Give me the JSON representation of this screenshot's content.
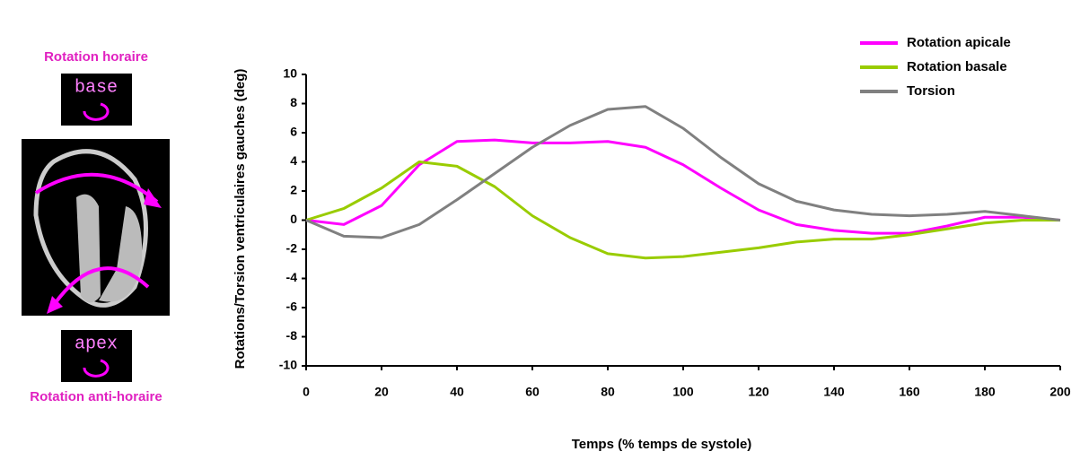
{
  "chart_data": {
    "type": "line",
    "y_label": "Rotations/Torsion ventriculaires gauches  (deg)",
    "x_label": "Temps (% temps de systole)",
    "annotations": [
      "Rotation horaire",
      "base",
      "apex",
      "Rotation anti-horaire"
    ],
    "x": [
      0,
      10,
      20,
      30,
      40,
      50,
      60,
      70,
      80,
      90,
      100,
      110,
      120,
      130,
      140,
      150,
      160,
      170,
      180,
      190,
      200
    ],
    "series": [
      {
        "name": "Rotation apicale",
        "color": "#ff00ff",
        "values": [
          0,
          -0.3,
          1.0,
          3.8,
          5.4,
          5.5,
          5.3,
          5.3,
          5.4,
          5.0,
          3.8,
          2.2,
          0.7,
          -0.3,
          -0.7,
          -0.9,
          -0.9,
          -0.4,
          0.2,
          0.2,
          0
        ]
      },
      {
        "name": "Rotation basale",
        "color": "#99cc00",
        "values": [
          0,
          0.8,
          2.2,
          4.0,
          3.7,
          2.3,
          0.3,
          -1.2,
          -2.3,
          -2.6,
          -2.5,
          -2.2,
          -1.9,
          -1.5,
          -1.3,
          -1.3,
          -1.0,
          -0.6,
          -0.2,
          0,
          0
        ]
      },
      {
        "name": "Torsion",
        "color": "#808080",
        "values": [
          0,
          -1.1,
          -1.2,
          -0.3,
          1.4,
          3.2,
          5.0,
          6.5,
          7.6,
          7.8,
          6.3,
          4.3,
          2.5,
          1.3,
          0.7,
          0.4,
          0.3,
          0.4,
          0.6,
          0.3,
          0
        ]
      }
    ],
    "xlim": [
      0,
      200
    ],
    "xticks": [
      0,
      20,
      40,
      60,
      80,
      100,
      120,
      140,
      160,
      180,
      200
    ],
    "ylim": [
      -10,
      10
    ],
    "yticks": [
      -10,
      -8,
      -6,
      -4,
      -2,
      0,
      2,
      4,
      6,
      8,
      10
    ],
    "grid": false,
    "legend": "top-right"
  }
}
